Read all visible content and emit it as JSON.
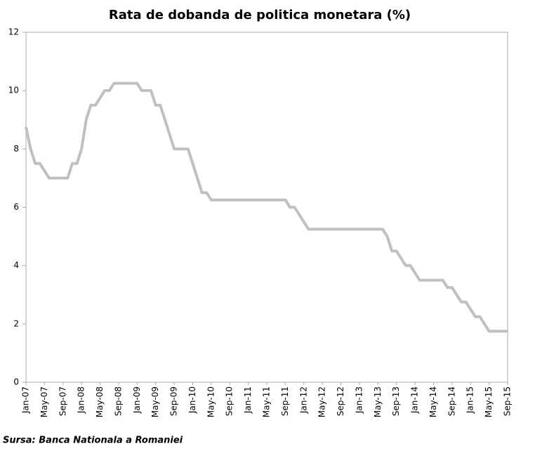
{
  "chart_data": {
    "type": "line",
    "title": "Rata de dobanda de politica monetara (%)",
    "source": "Sursa: Banca Nationala a Romaniei",
    "categories": [
      "Jan-07",
      null,
      null,
      null,
      "May-07",
      null,
      null,
      null,
      "Sep-07",
      null,
      null,
      null,
      "Jan-08",
      null,
      null,
      null,
      "May-08",
      null,
      null,
      null,
      "Sep-08",
      null,
      null,
      null,
      "Jan-09",
      null,
      null,
      null,
      "May-09",
      null,
      null,
      null,
      "Sep-09",
      null,
      null,
      null,
      "Jan-10",
      null,
      null,
      null,
      "May-10",
      null,
      null,
      null,
      "Sep-10",
      null,
      null,
      null,
      "Jan-11",
      null,
      null,
      null,
      "May-11",
      null,
      null,
      null,
      "Sep-11",
      null,
      null,
      null,
      "Jan-12",
      null,
      null,
      null,
      "May-12",
      null,
      null,
      null,
      "Sep-12",
      null,
      null,
      null,
      "Jan-13",
      null,
      null,
      null,
      "May-13",
      null,
      null,
      null,
      "Sep-13",
      null,
      null,
      null,
      "Jan-14",
      null,
      null,
      null,
      "May-14",
      null,
      null,
      null,
      "Sep-14",
      null,
      null,
      null,
      "Jan-15",
      null,
      null,
      null,
      "May-15",
      null,
      null,
      null,
      "Sep-15"
    ],
    "series": [
      {
        "name": "Rata de dobanda de politica monetara",
        "color": "#c0c0c0",
        "values": [
          8.75,
          8.0,
          7.5,
          7.5,
          7.25,
          7.0,
          7.0,
          7.0,
          7.0,
          7.0,
          7.5,
          7.5,
          8.0,
          9.0,
          9.5,
          9.5,
          9.75,
          10.0,
          10.0,
          10.25,
          10.25,
          10.25,
          10.25,
          10.25,
          10.25,
          10.0,
          10.0,
          10.0,
          9.5,
          9.5,
          9.0,
          8.5,
          8.0,
          8.0,
          8.0,
          8.0,
          7.5,
          7.0,
          6.5,
          6.5,
          6.25,
          6.25,
          6.25,
          6.25,
          6.25,
          6.25,
          6.25,
          6.25,
          6.25,
          6.25,
          6.25,
          6.25,
          6.25,
          6.25,
          6.25,
          6.25,
          6.25,
          6.0,
          6.0,
          5.75,
          5.5,
          5.25,
          5.25,
          5.25,
          5.25,
          5.25,
          5.25,
          5.25,
          5.25,
          5.25,
          5.25,
          5.25,
          5.25,
          5.25,
          5.25,
          5.25,
          5.25,
          5.25,
          5.0,
          4.5,
          4.5,
          4.25,
          4.0,
          4.0,
          3.75,
          3.5,
          3.5,
          3.5,
          3.5,
          3.5,
          3.5,
          3.25,
          3.25,
          3.0,
          2.75,
          2.75,
          2.5,
          2.25,
          2.25,
          2.0,
          1.75,
          1.75,
          1.75,
          1.75,
          1.75
        ]
      }
    ],
    "ylim": [
      0,
      12
    ],
    "yticks": [
      0,
      2,
      4,
      6,
      8,
      10,
      12
    ],
    "grid": false
  }
}
